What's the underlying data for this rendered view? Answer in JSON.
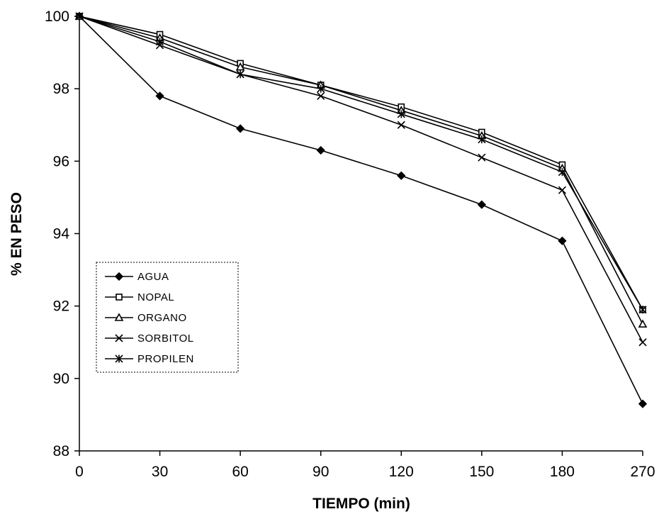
{
  "chart_data": {
    "type": "line",
    "x": [
      "0",
      "30",
      "60",
      "90",
      "120",
      "150",
      "180",
      "270"
    ],
    "xlabel": "TIEMPO (min)",
    "ylabel": "% EN PESO",
    "ylim": [
      88,
      100
    ],
    "yticks": [
      88,
      90,
      92,
      94,
      96,
      98,
      100
    ],
    "grid": false,
    "legend_position": "lower-left",
    "series": [
      {
        "name": "AGUA",
        "marker": "filled-diamond",
        "color": "#000000",
        "values": [
          100,
          97.8,
          96.9,
          96.3,
          95.6,
          94.8,
          93.8,
          89.3
        ]
      },
      {
        "name": "NOPAL",
        "marker": "open-square",
        "color": "#000000",
        "values": [
          100,
          99.5,
          98.7,
          98.1,
          97.5,
          96.8,
          95.9,
          91.9
        ]
      },
      {
        "name": "ORGANO",
        "marker": "open-triangle",
        "color": "#000000",
        "values": [
          100,
          99.4,
          98.6,
          98.1,
          97.4,
          96.7,
          95.8,
          91.5
        ]
      },
      {
        "name": "SORBITOL",
        "marker": "x-cross",
        "color": "#000000",
        "values": [
          100,
          99.2,
          98.4,
          97.8,
          97.0,
          96.1,
          95.2,
          91.0
        ]
      },
      {
        "name": "PROPILEN",
        "marker": "asterisk",
        "color": "#000000",
        "values": [
          100,
          99.3,
          98.4,
          98.0,
          97.3,
          96.6,
          95.7,
          91.9
        ]
      }
    ]
  }
}
